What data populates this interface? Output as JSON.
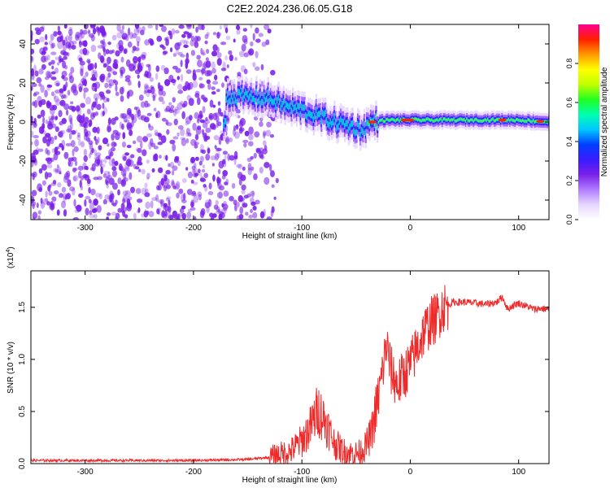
{
  "figure_title": "C2E2.2024.236.06.05.G18",
  "colors": {
    "snr_line": "#ee2b2b",
    "speckle": "#7a20e8",
    "colormap": [
      "#ffffff",
      "#e6d6ff",
      "#b07cff",
      "#7a20e8",
      "#3a1cff",
      "#0040ff",
      "#00c8ff",
      "#00ffb0",
      "#20ff20",
      "#c0ff00",
      "#ffff00",
      "#ff9900",
      "#ff2000",
      "#ff0090"
    ]
  },
  "chart_data": [
    {
      "type": "heatmap",
      "xlabel": "Height of straight line (km)",
      "ylabel": "Frequency (Hz)",
      "xlim": [
        -350,
        128
      ],
      "ylim": [
        -50,
        50
      ],
      "xticks": [
        -300,
        -200,
        -100,
        0,
        100
      ],
      "yticks": [
        -40,
        -20,
        0,
        20,
        40
      ],
      "colorbar": {
        "label": "Normalized spectral amplitude",
        "range": [
          0,
          1
        ],
        "ticks": [
          "0.0",
          "0.2",
          "0.4",
          "0.6",
          "0.8"
        ]
      },
      "noise_region_x": [
        -350,
        -122
      ],
      "ridge": {
        "description_points": [
          {
            "x": -170,
            "y": 13
          },
          {
            "x": -150,
            "y": 13
          },
          {
            "x": -130,
            "y": 12
          },
          {
            "x": -115,
            "y": 8
          },
          {
            "x": -100,
            "y": 6
          },
          {
            "x": -85,
            "y": 3
          },
          {
            "x": -70,
            "y": 0
          },
          {
            "x": -55,
            "y": -2
          },
          {
            "x": -45,
            "y": -4
          },
          {
            "x": -35,
            "y": 0
          },
          {
            "x": -20,
            "y": 1
          },
          {
            "x": 0,
            "y": 1
          },
          {
            "x": 50,
            "y": 1
          },
          {
            "x": 100,
            "y": 1
          },
          {
            "x": 128,
            "y": 0
          }
        ],
        "peak_x": [
          -35,
          -5,
          0,
          85,
          120
        ]
      }
    },
    {
      "type": "line",
      "xlabel": "Height of straight line (km)",
      "ylabel": "SNR (10 * v/v)",
      "y_multiplier": "(x10",
      "y_multiplier_exp": "4",
      "y_multiplier_close": ")",
      "xlim": [
        -350,
        128
      ],
      "ylim": [
        0,
        1.85
      ],
      "xticks": [
        -300,
        -200,
        -100,
        0,
        100
      ],
      "yticks": [
        "0.0",
        "0.5",
        "1.0",
        "1.5"
      ],
      "series": [
        {
          "x": [
            -350,
            -300,
            -250,
            -200,
            -150,
            -130,
            -110,
            -100,
            -92,
            -85,
            -78,
            -70,
            -62,
            -55,
            -48,
            -42,
            -36,
            -30,
            -26,
            -22,
            -18,
            -12,
            -6,
            0,
            6,
            12,
            18,
            24,
            30,
            40,
            50,
            60,
            70,
            80,
            85,
            90,
            95,
            100,
            105,
            110,
            115,
            120,
            128
          ],
          "y": [
            0.03,
            0.03,
            0.03,
            0.03,
            0.04,
            0.06,
            0.12,
            0.22,
            0.35,
            0.52,
            0.4,
            0.2,
            0.12,
            0.1,
            0.1,
            0.15,
            0.28,
            0.6,
            0.85,
            1.15,
            0.9,
            0.75,
            0.85,
            0.95,
            1.1,
            1.25,
            1.35,
            1.4,
            1.5,
            1.55,
            1.55,
            1.54,
            1.53,
            1.55,
            1.6,
            1.48,
            1.52,
            1.54,
            1.52,
            1.5,
            1.48,
            1.49,
            1.48
          ]
        }
      ]
    }
  ]
}
